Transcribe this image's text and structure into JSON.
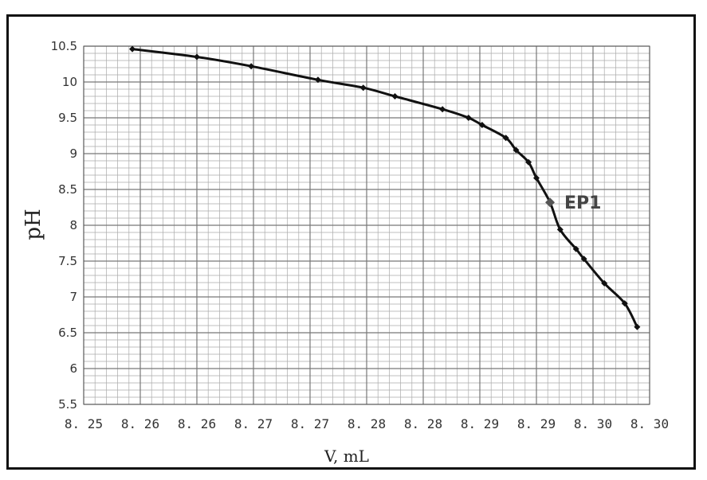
{
  "chart_data": {
    "type": "line",
    "title": "",
    "xlabel": "V, mL",
    "ylabel": "pH",
    "x_tick_labels": [
      "8.25",
      "8.26",
      "8.26",
      "8.27",
      "8.27",
      "8.28",
      "8.28",
      "8.29",
      "8.29",
      "8.30",
      "8.30"
    ],
    "y_tick_labels": [
      "5.5",
      "6",
      "6.5",
      "7",
      "7.5",
      "8",
      "8.5",
      "9",
      "9.5",
      "10",
      "10.5"
    ],
    "xlim": [
      8.25,
      8.3
    ],
    "ylim": [
      5.5,
      10.5
    ],
    "grid": true,
    "series": [
      {
        "points": [
          {
            "x": 8.2543,
            "y": 10.46
          },
          {
            "x": 8.26,
            "y": 10.35
          },
          {
            "x": 8.2648,
            "y": 10.22
          },
          {
            "x": 8.2707,
            "y": 10.03
          },
          {
            "x": 8.2747,
            "y": 9.92
          },
          {
            "x": 8.2775,
            "y": 9.8
          },
          {
            "x": 8.2817,
            "y": 9.62
          },
          {
            "x": 8.284,
            "y": 9.5
          },
          {
            "x": 8.2852,
            "y": 9.4
          },
          {
            "x": 8.2873,
            "y": 9.22
          },
          {
            "x": 8.2882,
            "y": 9.05
          },
          {
            "x": 8.2893,
            "y": 8.88
          },
          {
            "x": 8.29,
            "y": 8.66
          },
          {
            "x": 8.2912,
            "y": 8.32
          },
          {
            "x": 8.2921,
            "y": 7.94
          },
          {
            "x": 8.2935,
            "y": 7.67
          },
          {
            "x": 8.2942,
            "y": 7.53
          },
          {
            "x": 8.296,
            "y": 7.19
          },
          {
            "x": 8.2978,
            "y": 6.91
          },
          {
            "x": 8.2989,
            "y": 6.58
          }
        ]
      }
    ],
    "annotation": {
      "label": "EP1",
      "x": 8.2912,
      "y": 8.32,
      "color": "#555555"
    },
    "line_color": "#111111",
    "marker_color": "#111111"
  }
}
